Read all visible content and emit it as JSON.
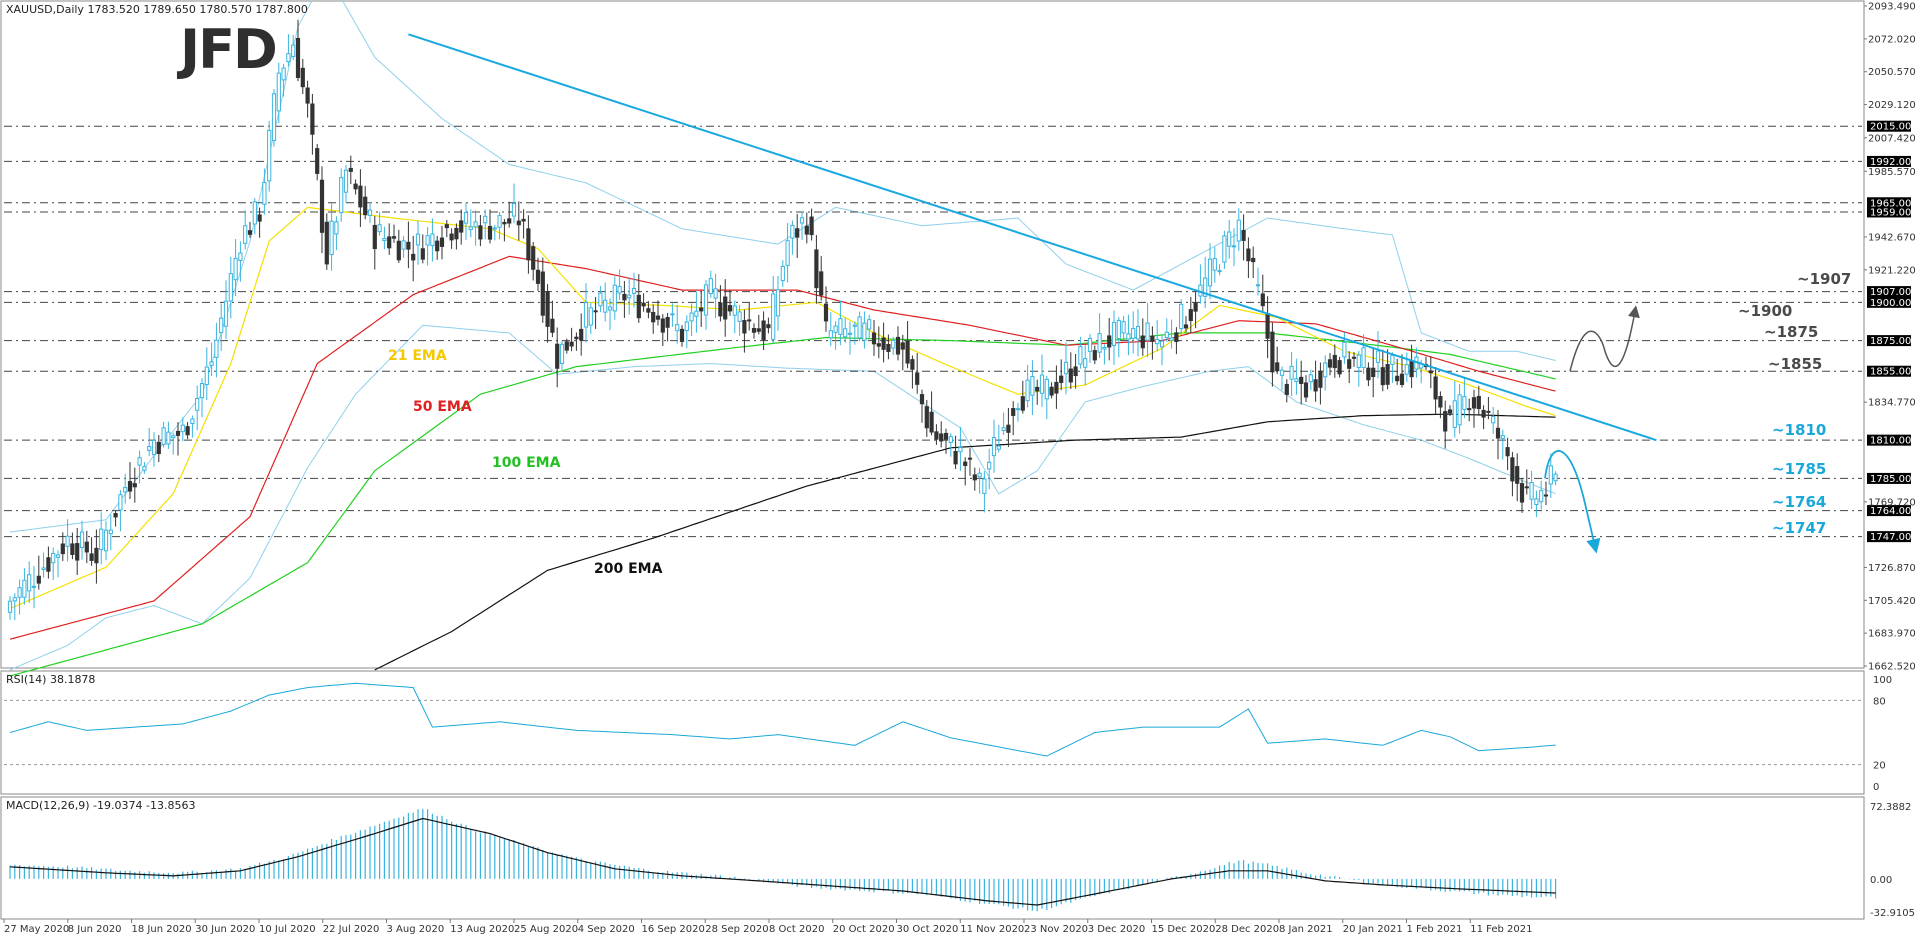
{
  "chart_data": [
    {
      "type": "candlestick",
      "symbol_header": "XAUUSD,Daily  1783.520 1789.650 1780.570 1787.800",
      "logo": "JFD",
      "ylim": [
        1662.52,
        2093.49
      ],
      "y_ticks": [
        "2093.490",
        "2072.020",
        "2050.570",
        "2029.120",
        "2007.420",
        "1985.570",
        "1942.670",
        "1921.220",
        "1834.770",
        "1769.720",
        "1726.870",
        "1705.420",
        "1683.970",
        "1662.520"
      ],
      "x_labels": [
        "27 May 2020",
        "8 Jun 2020",
        "18 Jun 2020",
        "30 Jun 2020",
        "10 Jul 2020",
        "22 Jul 2020",
        "3 Aug 2020",
        "13 Aug 2020",
        "25 Aug 2020",
        "4 Sep 2020",
        "16 Sep 2020",
        "28 Sep 2020",
        "8 Oct 2020",
        "20 Oct 2020",
        "30 Oct 2020",
        "11 Nov 2020",
        "23 Nov 2020",
        "3 Dec 2020",
        "15 Dec 2020",
        "28 Dec 2020",
        "8 Jan 2021",
        "20 Jan 2021",
        "1 Feb 2021",
        "11 Feb 2021"
      ],
      "levels": [
        {
          "value": 2015.0,
          "badge": "2015.000"
        },
        {
          "value": 1992.0,
          "badge": "1992.000"
        },
        {
          "value": 1965.0,
          "badge": "1965.000"
        },
        {
          "value": 1959.0,
          "badge": "1959.000"
        },
        {
          "value": 1907.0,
          "badge": "1907.000",
          "label": "~1907",
          "color": "#4a4a4a"
        },
        {
          "value": 1900.0,
          "badge": "1900.000",
          "label": "~1900",
          "color": "#4a4a4a"
        },
        {
          "value": 1875.0,
          "badge": "1875.000",
          "label": "~1875",
          "color": "#4a4a4a"
        },
        {
          "value": 1855.0,
          "badge": "1855.000",
          "label": "~1855",
          "color": "#4a4a4a"
        },
        {
          "value": 1810.0,
          "badge": "1810.000",
          "label": "~1810",
          "color": "#1aa8d8"
        },
        {
          "value": 1785.0,
          "badge": "1785.000",
          "label": "~1785",
          "color": "#1aa8d8"
        },
        {
          "value": 1764.0,
          "badge": "1764.000",
          "label": "~1764",
          "color": "#1aa8d8"
        },
        {
          "value": 1747.0,
          "badge": "1747.000",
          "label": "~1747",
          "color": "#1aa8d8"
        }
      ],
      "series": [
        {
          "name": "21 EMA",
          "color": "#f5e000"
        },
        {
          "name": "50 EMA",
          "color": "#e02020"
        },
        {
          "name": "100 EMA",
          "color": "#22d022"
        },
        {
          "name": "200 EMA",
          "color": "#111111"
        }
      ],
      "anchors": {
        "close": [
          [
            0,
            1705
          ],
          [
            6,
            1725
          ],
          [
            12,
            1745
          ],
          [
            18,
            1735
          ],
          [
            24,
            1780
          ],
          [
            30,
            1810
          ],
          [
            36,
            1815
          ],
          [
            42,
            1862
          ],
          [
            48,
            1942
          ],
          [
            52,
            1960
          ],
          [
            56,
            2050
          ],
          [
            59,
            2070
          ],
          [
            62,
            2025
          ],
          [
            66,
            1930
          ],
          [
            70,
            1985
          ],
          [
            76,
            1945
          ],
          [
            84,
            1935
          ],
          [
            92,
            1950
          ],
          [
            100,
            1950
          ],
          [
            106,
            1955
          ],
          [
            110,
            1915
          ],
          [
            114,
            1865
          ],
          [
            120,
            1890
          ],
          [
            128,
            1905
          ],
          [
            134,
            1895
          ],
          [
            140,
            1880
          ],
          [
            146,
            1905
          ],
          [
            152,
            1890
          ],
          [
            158,
            1880
          ],
          [
            162,
            1940
          ],
          [
            166,
            1955
          ],
          [
            170,
            1880
          ],
          [
            178,
            1880
          ],
          [
            186,
            1870
          ],
          [
            192,
            1815
          ],
          [
            198,
            1800
          ],
          [
            202,
            1780
          ],
          [
            206,
            1812
          ],
          [
            210,
            1840
          ],
          [
            216,
            1842
          ],
          [
            222,
            1860
          ],
          [
            228,
            1875
          ],
          [
            234,
            1880
          ],
          [
            240,
            1875
          ],
          [
            246,
            1895
          ],
          [
            252,
            1930
          ],
          [
            256,
            1950
          ],
          [
            260,
            1905
          ],
          [
            264,
            1850
          ],
          [
            270,
            1845
          ],
          [
            276,
            1865
          ],
          [
            282,
            1860
          ],
          [
            288,
            1855
          ],
          [
            294,
            1860
          ],
          [
            300,
            1820
          ],
          [
            304,
            1840
          ],
          [
            308,
            1825
          ],
          [
            312,
            1800
          ],
          [
            316,
            1770
          ],
          [
            320,
            1777
          ],
          [
            322,
            1787.8
          ]
        ],
        "ema21": [
          [
            0,
            1700
          ],
          [
            20,
            1727
          ],
          [
            34,
            1775
          ],
          [
            46,
            1860
          ],
          [
            54,
            1940
          ],
          [
            62,
            1962
          ],
          [
            80,
            1955
          ],
          [
            100,
            1948
          ],
          [
            110,
            1935
          ],
          [
            120,
            1900
          ],
          [
            136,
            1898
          ],
          [
            152,
            1895
          ],
          [
            168,
            1900
          ],
          [
            180,
            1880
          ],
          [
            196,
            1858
          ],
          [
            210,
            1840
          ],
          [
            224,
            1846
          ],
          [
            240,
            1870
          ],
          [
            252,
            1898
          ],
          [
            264,
            1890
          ],
          [
            278,
            1868
          ],
          [
            292,
            1858
          ],
          [
            304,
            1846
          ],
          [
            316,
            1832
          ],
          [
            322,
            1826
          ]
        ],
        "ema50": [
          [
            0,
            1680
          ],
          [
            30,
            1705
          ],
          [
            50,
            1760
          ],
          [
            64,
            1860
          ],
          [
            84,
            1905
          ],
          [
            104,
            1930
          ],
          [
            120,
            1922
          ],
          [
            140,
            1908
          ],
          [
            164,
            1908
          ],
          [
            180,
            1895
          ],
          [
            200,
            1885
          ],
          [
            220,
            1872
          ],
          [
            240,
            1875
          ],
          [
            256,
            1888
          ],
          [
            272,
            1886
          ],
          [
            290,
            1870
          ],
          [
            306,
            1855
          ],
          [
            322,
            1842
          ]
        ],
        "ema100": [
          [
            0,
            1656
          ],
          [
            40,
            1690
          ],
          [
            62,
            1730
          ],
          [
            76,
            1790
          ],
          [
            98,
            1840
          ],
          [
            118,
            1858
          ],
          [
            150,
            1870
          ],
          [
            170,
            1877
          ],
          [
            196,
            1875
          ],
          [
            220,
            1872
          ],
          [
            244,
            1880
          ],
          [
            262,
            1880
          ],
          [
            282,
            1873
          ],
          [
            300,
            1866
          ],
          [
            322,
            1850
          ]
        ],
        "ema200": [
          [
            76,
            1660
          ],
          [
            92,
            1685
          ],
          [
            112,
            1725
          ],
          [
            134,
            1746
          ],
          [
            166,
            1780
          ],
          [
            196,
            1805
          ],
          [
            222,
            1810
          ],
          [
            244,
            1812
          ],
          [
            262,
            1822
          ],
          [
            282,
            1826
          ],
          [
            300,
            1827
          ],
          [
            322,
            1825
          ]
        ],
        "bb_upper": [
          [
            0,
            1750
          ],
          [
            20,
            1758
          ],
          [
            30,
            1800
          ],
          [
            40,
            1840
          ],
          [
            50,
            1940
          ],
          [
            60,
            2080
          ],
          [
            66,
            2115
          ],
          [
            76,
            2060
          ],
          [
            90,
            2020
          ],
          [
            104,
            1990
          ],
          [
            120,
            1978
          ],
          [
            140,
            1948
          ],
          [
            160,
            1938
          ],
          [
            172,
            1962
          ],
          [
            190,
            1950
          ],
          [
            210,
            1955
          ],
          [
            220,
            1925
          ],
          [
            234,
            1908
          ],
          [
            250,
            1935
          ],
          [
            262,
            1955
          ],
          [
            278,
            1948
          ],
          [
            288,
            1944
          ],
          [
            294,
            1880
          ],
          [
            304,
            1868
          ],
          [
            314,
            1868
          ],
          [
            322,
            1862
          ]
        ],
        "bb_lower": [
          [
            0,
            1660
          ],
          [
            12,
            1676
          ],
          [
            20,
            1694
          ],
          [
            30,
            1702
          ],
          [
            40,
            1690
          ],
          [
            50,
            1720
          ],
          [
            62,
            1792
          ],
          [
            72,
            1840
          ],
          [
            86,
            1885
          ],
          [
            104,
            1880
          ],
          [
            114,
            1853
          ],
          [
            130,
            1858
          ],
          [
            146,
            1860
          ],
          [
            162,
            1857
          ],
          [
            180,
            1855
          ],
          [
            198,
            1818
          ],
          [
            206,
            1775
          ],
          [
            214,
            1790
          ],
          [
            224,
            1835
          ],
          [
            236,
            1845
          ],
          [
            250,
            1855
          ],
          [
            258,
            1858
          ],
          [
            268,
            1835
          ],
          [
            282,
            1820
          ],
          [
            294,
            1810
          ],
          [
            304,
            1798
          ],
          [
            314,
            1785
          ],
          [
            322,
            1775
          ]
        ],
        "trendline": [
          [
            83,
            2075
          ],
          [
            343,
            1810
          ]
        ],
        "rsi": [
          [
            0,
            50
          ],
          [
            8,
            60
          ],
          [
            16,
            52
          ],
          [
            26,
            55
          ],
          [
            36,
            58
          ],
          [
            46,
            70
          ],
          [
            54,
            85
          ],
          [
            62,
            92
          ],
          [
            72,
            96
          ],
          [
            84,
            92
          ],
          [
            88,
            55
          ],
          [
            102,
            60
          ],
          [
            118,
            52
          ],
          [
            138,
            48
          ],
          [
            150,
            44
          ],
          [
            160,
            48
          ],
          [
            176,
            38
          ],
          [
            186,
            60
          ],
          [
            196,
            45
          ],
          [
            216,
            28
          ],
          [
            226,
            50
          ],
          [
            236,
            55
          ],
          [
            252,
            55
          ],
          [
            258,
            72
          ],
          [
            262,
            40
          ],
          [
            274,
            44
          ],
          [
            286,
            38
          ],
          [
            294,
            52
          ],
          [
            300,
            46
          ],
          [
            306,
            33
          ],
          [
            316,
            36
          ],
          [
            322,
            38.19
          ]
        ],
        "macd_hist": [
          [
            0,
            14
          ],
          [
            12,
            12
          ],
          [
            24,
            8
          ],
          [
            36,
            6
          ],
          [
            48,
            10
          ],
          [
            58,
            22
          ],
          [
            68,
            40
          ],
          [
            80,
            60
          ],
          [
            86,
            70
          ],
          [
            96,
            50
          ],
          [
            110,
            30
          ],
          [
            120,
            18
          ],
          [
            134,
            8
          ],
          [
            150,
            2
          ],
          [
            166,
            -8
          ],
          [
            190,
            -15
          ],
          [
            214,
            -32
          ],
          [
            230,
            -12
          ],
          [
            246,
            5
          ],
          [
            256,
            18
          ],
          [
            262,
            14
          ],
          [
            270,
            6
          ],
          [
            286,
            -6
          ],
          [
            300,
            -12
          ],
          [
            310,
            -16
          ],
          [
            322,
            -19
          ]
        ],
        "macd_signal": [
          [
            0,
            12
          ],
          [
            20,
            6
          ],
          [
            34,
            3
          ],
          [
            48,
            8
          ],
          [
            60,
            22
          ],
          [
            76,
            45
          ],
          [
            86,
            60
          ],
          [
            100,
            45
          ],
          [
            112,
            26
          ],
          [
            126,
            10
          ],
          [
            140,
            3
          ],
          [
            156,
            -2
          ],
          [
            168,
            -6
          ],
          [
            186,
            -12
          ],
          [
            204,
            -22
          ],
          [
            214,
            -26
          ],
          [
            226,
            -15
          ],
          [
            242,
            0
          ],
          [
            254,
            8
          ],
          [
            262,
            8
          ],
          [
            274,
            -2
          ],
          [
            286,
            -6
          ],
          [
            302,
            -10
          ],
          [
            312,
            -12
          ],
          [
            322,
            -14
          ]
        ]
      },
      "annotations": {
        "ema_labels": [
          "21 EMA",
          "50 EMA",
          "100 EMA",
          "200 EMA"
        ],
        "rsi_title": "RSI(14) 38.1878",
        "rsi_ticks": [
          "100",
          "80",
          "20",
          "0"
        ],
        "macd_title": "MACD(12,26,9) -19.0374 -13.8563",
        "macd_ticks": [
          "72.3882",
          "0.00",
          "-32.9105"
        ],
        "macd_ylim": [
          -32.9105,
          72.3882
        ]
      },
      "colors": {
        "bull": "#38b4e0",
        "bear": "#333333",
        "bands": "#8fd0ec",
        "trend": "#1aa8e0",
        "level_line": "#444444",
        "arrow": "#1aa8d8",
        "badge": "#000000",
        "grid_axis": "#888888"
      },
      "scenario_arrows": [
        {
          "kind": "up",
          "color": "#555555"
        },
        {
          "kind": "down",
          "color": "#1aa8d8"
        }
      ]
    }
  ]
}
